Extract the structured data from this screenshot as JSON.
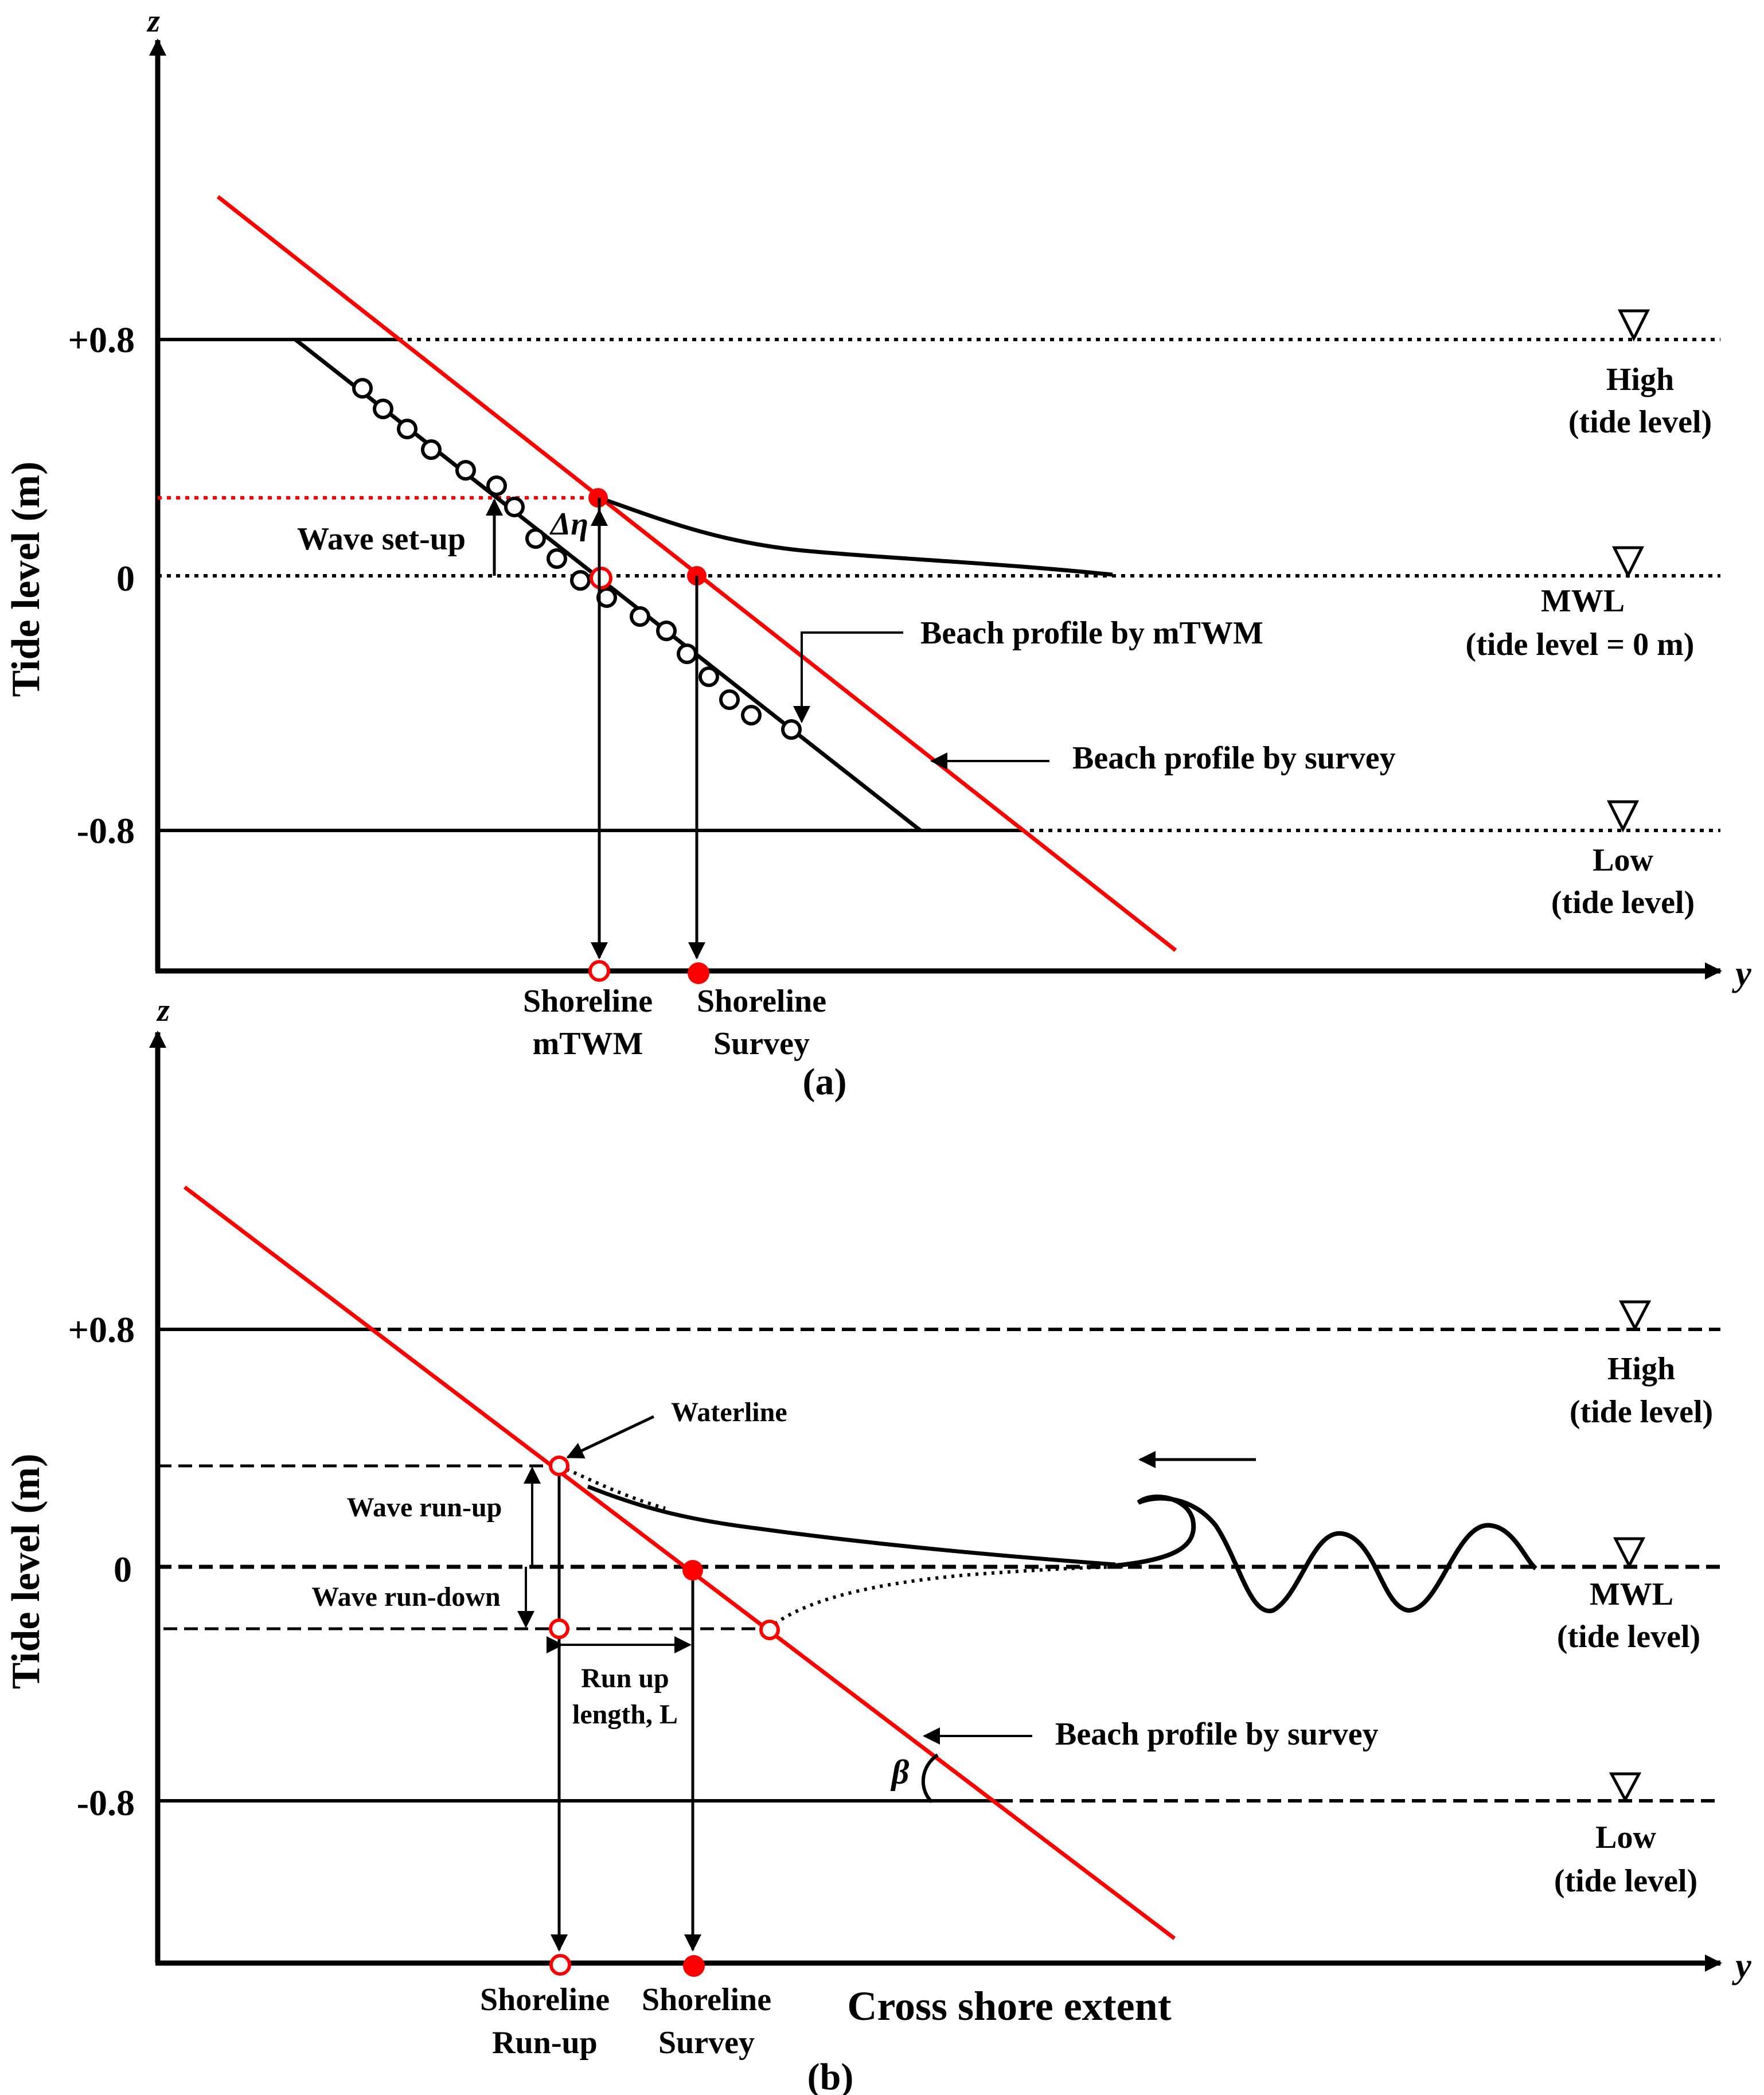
{
  "panel_a": {
    "caption": "(a)",
    "axis_z": "z",
    "axis_y": "y",
    "ylabel": "Tide level (m)",
    "ticks": {
      "high": "+0.8",
      "mwl": "0",
      "low": "-0.8"
    },
    "high": {
      "label": "High",
      "sub": "(tide level)"
    },
    "mwl": {
      "label": "MWL",
      "sub": "(tide level = 0 m)"
    },
    "low": {
      "label": "Low",
      "sub": "(tide level)"
    },
    "setup_label": "Wave set-up",
    "delta_eta": "Δη",
    "mtwm_label": "Beach profile by mTWM",
    "survey_label": "Beach profile by survey",
    "shore_mtwm": [
      "Shoreline",
      "mTWM"
    ],
    "shore_survey": [
      "Shoreline",
      "Survey"
    ]
  },
  "panel_b": {
    "caption": "(b)",
    "axis_z": "z",
    "axis_y": "y",
    "ylabel": "Tide level (m)",
    "ticks": {
      "high": "+0.8",
      "mwl": "0",
      "low": "-0.8"
    },
    "high": {
      "label": "High",
      "sub": "(tide level)"
    },
    "mwl": {
      "label": "MWL",
      "sub": "(tide level)"
    },
    "low": {
      "label": "Low",
      "sub": "(tide level)"
    },
    "waterline_label": "Waterline",
    "runup_label": "Wave run-up",
    "rundown_label": "Wave run-down",
    "runup_length": [
      "Run up",
      "length, L"
    ],
    "survey_label": "Beach profile by survey",
    "beta": "β",
    "shore_runup": [
      "Shoreline",
      "Run-up"
    ],
    "shore_survey": [
      "Shoreline",
      "Survey"
    ],
    "xlabel": "Cross shore extent"
  },
  "colors": {
    "survey_line": "#ff0000",
    "ink": "#000000"
  }
}
